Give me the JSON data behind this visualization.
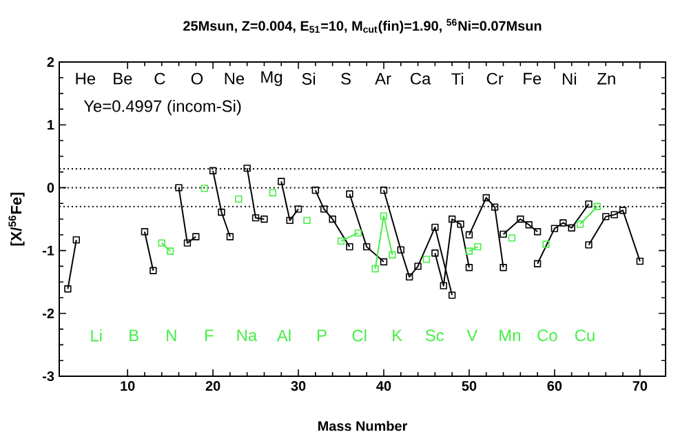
{
  "chart_data": {
    "type": "line",
    "title": "25Msun, Z=0.004, E$_{51}$=10, M$_{cut}$(fin)=1.90, $^{56}$Ni=0.07Msun",
    "xlabel": "Mass Number",
    "ylabel": "[X/$^{56}$Fe]",
    "xlim": [
      2,
      73
    ],
    "ylim": [
      -3,
      2
    ],
    "xticks": [
      10,
      20,
      30,
      40,
      50,
      60,
      70
    ],
    "yticks": [
      -3,
      -2,
      -1,
      0,
      1,
      2
    ],
    "grid": false,
    "marker": "square",
    "line_style": "solid",
    "ref_lines": [
      {
        "axis": "y",
        "value": 0.3,
        "line_style": "dotted"
      },
      {
        "axis": "y",
        "value": 0,
        "line_style": "dotted"
      },
      {
        "axis": "y",
        "value": -0.3,
        "line_style": "dotted"
      }
    ],
    "annotations": [
      "Ye=0.4997 (incom-Si)",
      "He",
      "Be",
      "C",
      "O",
      "Ne",
      "Mg",
      "Si",
      "S",
      "Ar",
      "Ca",
      "Ti",
      "Cr",
      "Fe",
      "Ni",
      "Zn",
      "Li",
      "B",
      "N",
      "F",
      "Na",
      "Al",
      "P",
      "Cl",
      "K",
      "Sc",
      "V",
      "Mn",
      "Co",
      "Cu"
    ],
    "series": [
      {
        "color": "#000000",
        "x": [
          3,
          4
        ],
        "values": [
          -1.61,
          -0.83
        ]
      },
      {
        "color": "#000000",
        "x": [
          12,
          13
        ],
        "values": [
          -0.7,
          -1.32
        ]
      },
      {
        "color": "#44ee44",
        "x": [
          14,
          15
        ],
        "values": [
          -0.88,
          -1.01
        ]
      },
      {
        "color": "#000000",
        "x": [
          16,
          17,
          18
        ],
        "values": [
          0.0,
          -0.88,
          -0.78
        ]
      },
      {
        "color": "#44ee44",
        "x": [
          19
        ],
        "values": [
          -0.01
        ]
      },
      {
        "color": "#000000",
        "x": [
          20,
          21,
          22
        ],
        "values": [
          0.27,
          -0.39,
          -0.78
        ]
      },
      {
        "color": "#44ee44",
        "x": [
          23
        ],
        "values": [
          -0.18
        ]
      },
      {
        "color": "#000000",
        "x": [
          24,
          25,
          26
        ],
        "values": [
          0.31,
          -0.48,
          -0.5
        ]
      },
      {
        "color": "#44ee44",
        "x": [
          27
        ],
        "values": [
          -0.08
        ]
      },
      {
        "color": "#000000",
        "x": [
          28,
          29,
          30
        ],
        "values": [
          0.1,
          -0.52,
          -0.34
        ]
      },
      {
        "color": "#44ee44",
        "x": [
          31
        ],
        "values": [
          -0.52
        ]
      },
      {
        "color": "#000000",
        "x": [
          32,
          33,
          34,
          36
        ],
        "values": [
          -0.04,
          -0.34,
          -0.5,
          -0.94
        ]
      },
      {
        "color": "#44ee44",
        "x": [
          35,
          37
        ],
        "values": [
          -0.85,
          -0.72
        ]
      },
      {
        "color": "#000000",
        "x": [
          36,
          38,
          40
        ],
        "values": [
          -0.1,
          -0.94,
          -1.18
        ]
      },
      {
        "color": "#44ee44",
        "x": [
          39,
          40,
          41
        ],
        "values": [
          -1.29,
          -0.45,
          -1.07
        ]
      },
      {
        "color": "#000000",
        "x": [
          40,
          42,
          43,
          44,
          46,
          48
        ],
        "values": [
          -0.04,
          -0.99,
          -1.42,
          -1.25,
          -0.63,
          -1.71
        ]
      },
      {
        "color": "#44ee44",
        "x": [
          45
        ],
        "values": [
          -1.14
        ]
      },
      {
        "color": "#000000",
        "x": [
          46,
          47,
          48,
          49,
          50
        ],
        "values": [
          -1.04,
          -1.56,
          -0.5,
          -0.58,
          -1.27
        ]
      },
      {
        "color": "#44ee44",
        "x": [
          50,
          51
        ],
        "values": [
          -1.01,
          -0.94
        ]
      },
      {
        "color": "#000000",
        "x": [
          50,
          52,
          53,
          54
        ],
        "values": [
          -0.75,
          -0.16,
          -0.31,
          -1.27
        ]
      },
      {
        "color": "#44ee44",
        "x": [
          55
        ],
        "values": [
          -0.8
        ]
      },
      {
        "color": "#000000",
        "x": [
          54,
          56,
          57,
          58
        ],
        "values": [
          -0.74,
          -0.5,
          -0.59,
          -0.7
        ]
      },
      {
        "color": "#44ee44",
        "x": [
          59
        ],
        "values": [
          -0.9
        ]
      },
      {
        "color": "#000000",
        "x": [
          58,
          60,
          61,
          62,
          64
        ],
        "values": [
          -1.21,
          -0.65,
          -0.56,
          -0.64,
          -0.26
        ]
      },
      {
        "color": "#44ee44",
        "x": [
          63,
          65
        ],
        "values": [
          -0.58,
          -0.3
        ]
      },
      {
        "color": "#000000",
        "x": [
          64,
          66,
          67,
          68,
          70
        ],
        "values": [
          -0.91,
          -0.46,
          -0.43,
          -0.36,
          -1.17
        ]
      }
    ]
  }
}
